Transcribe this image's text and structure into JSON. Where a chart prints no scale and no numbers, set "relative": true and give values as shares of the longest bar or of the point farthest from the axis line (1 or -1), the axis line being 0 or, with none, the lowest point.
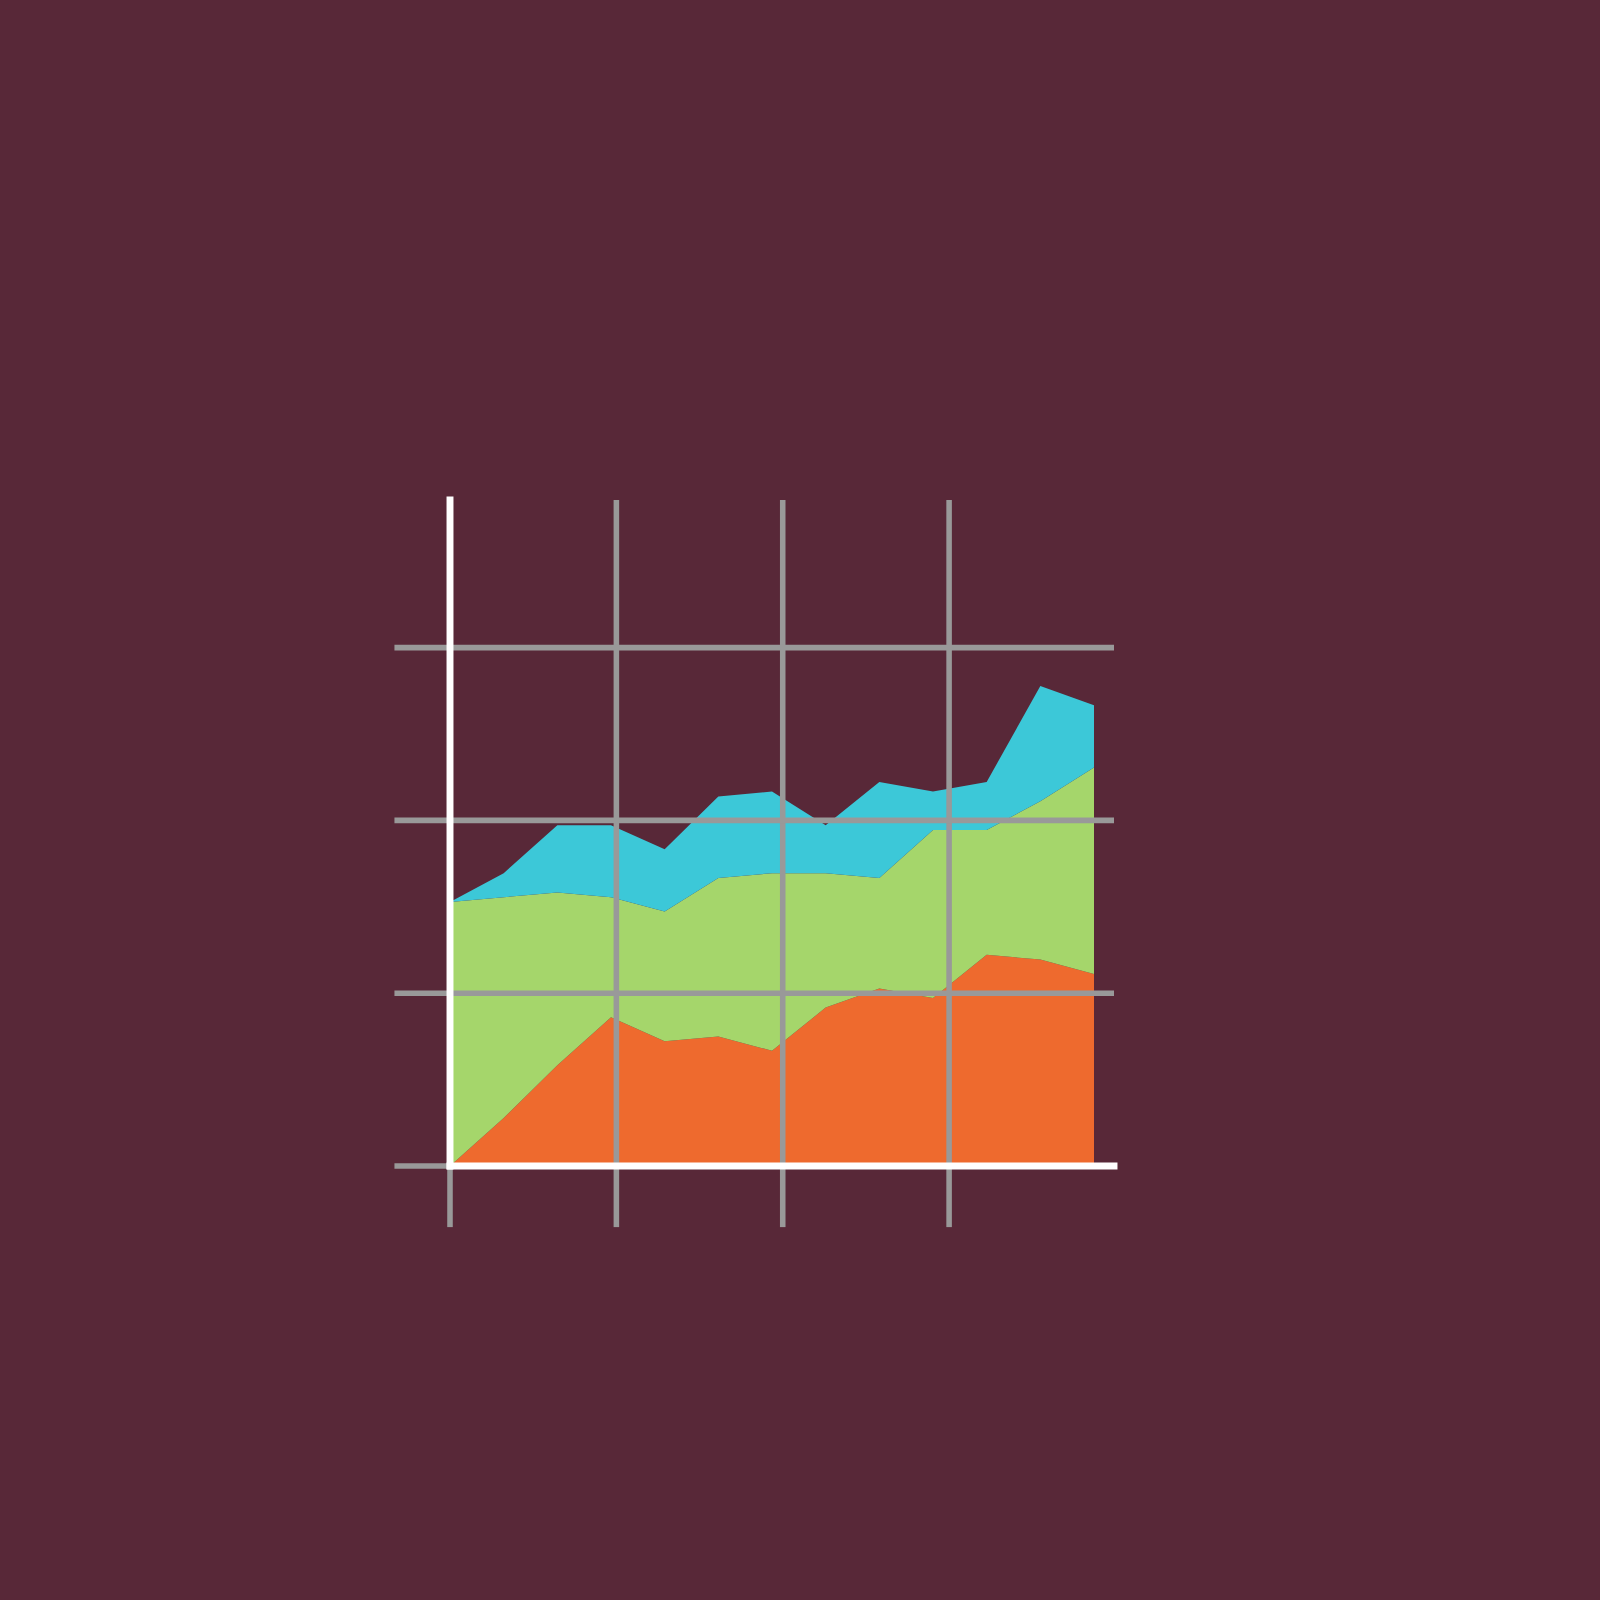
{
  "chart_data": {
    "type": "area",
    "stacked": true,
    "relative": true,
    "grid": true,
    "categories": [
      null,
      null,
      null,
      null,
      null,
      null,
      null,
      null,
      null,
      null,
      null,
      null,
      null
    ],
    "series": [
      {
        "color": "#ee6a2e",
        "values": [
          0,
          0.1,
          0.21,
          0.31,
          0.26,
          0.27,
          0.24,
          0.33,
          0.37,
          0.35,
          0.44,
          0.43,
          0.4
        ]
      },
      {
        "color": "#a5d66b",
        "values": [
          0.55,
          0.46,
          0.36,
          0.25,
          0.27,
          0.33,
          0.37,
          0.28,
          0.23,
          0.35,
          0.26,
          0.33,
          0.43
        ]
      },
      {
        "color": "#3cc8d8",
        "values": [
          0,
          0.05,
          0.14,
          0.15,
          0.13,
          0.17,
          0.17,
          0.1,
          0.2,
          0.08,
          0.1,
          0.24,
          0.13
        ]
      }
    ]
  }
}
